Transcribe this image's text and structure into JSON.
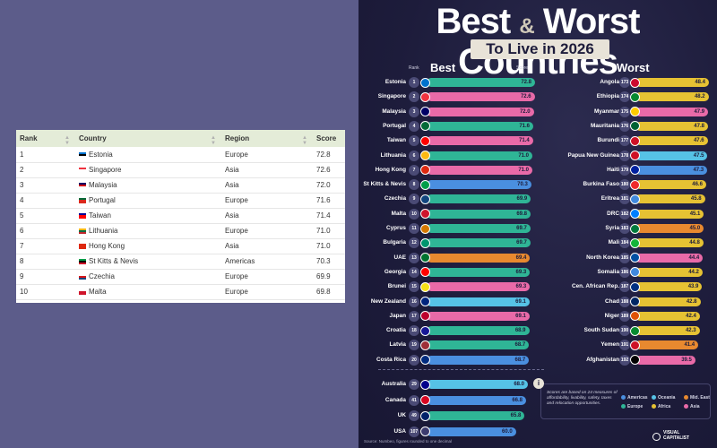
{
  "table": {
    "headers": [
      "Rank",
      "Country",
      "Region",
      "Score"
    ],
    "rows": [
      {
        "rank": "1",
        "country": "Estonia",
        "region": "Europe",
        "score": "72.8",
        "flag": [
          "#0072ce",
          "#000000",
          "#ffffff"
        ]
      },
      {
        "rank": "2",
        "country": "Singapore",
        "region": "Asia",
        "score": "72.6",
        "flag": [
          "#ef3340",
          "#ffffff",
          "#ffffff"
        ]
      },
      {
        "rank": "3",
        "country": "Malaysia",
        "region": "Asia",
        "score": "72.0",
        "flag": [
          "#010066",
          "#cc0001",
          "#ffffff"
        ]
      },
      {
        "rank": "4",
        "country": "Portugal",
        "region": "Europe",
        "score": "71.6",
        "flag": [
          "#046a38",
          "#da291c",
          "#da291c"
        ]
      },
      {
        "rank": "5",
        "country": "Taiwan",
        "region": "Asia",
        "score": "71.4",
        "flag": [
          "#000095",
          "#fe0000",
          "#fe0000"
        ]
      },
      {
        "rank": "6",
        "country": "Lithuania",
        "region": "Europe",
        "score": "71.0",
        "flag": [
          "#fdb913",
          "#006a44",
          "#c1272d"
        ]
      },
      {
        "rank": "7",
        "country": "Hong Kong",
        "region": "Asia",
        "score": "71.0",
        "flag": [
          "#de2910",
          "#de2910",
          "#de2910"
        ]
      },
      {
        "rank": "8",
        "country": "St Kitts & Nevis",
        "region": "Americas",
        "score": "70.3",
        "flag": [
          "#009e49",
          "#000000",
          "#ce1126"
        ]
      },
      {
        "rank": "9",
        "country": "Czechia",
        "region": "Europe",
        "score": "69.9",
        "flag": [
          "#ffffff",
          "#d7141a",
          "#11457e"
        ]
      },
      {
        "rank": "10",
        "country": "Malta",
        "region": "Europe",
        "score": "69.8",
        "flag": [
          "#ffffff",
          "#cf142b",
          "#cf142b"
        ]
      }
    ]
  },
  "infographic": {
    "title_main_a": "Best",
    "title_amp": "&",
    "title_main_b": "Worst Countries",
    "title_sub": "To Live in 2026",
    "best_label": "Best",
    "worst_label": "Worst",
    "rank_header": "Rank",
    "score_header": "Score",
    "colors": {
      "Americas": "#4a8fe0",
      "Europe": "#2fb596",
      "Oceania": "#56c2e6",
      "Africa": "#e6c233",
      "Mid. East": "#e8892f",
      "Asia": "#e96aa8"
    },
    "best": [
      {
        "name": "Estonia",
        "rank": "1",
        "score": 72.8,
        "region": "Europe",
        "flag": "#0072ce"
      },
      {
        "name": "Singapore",
        "rank": "2",
        "score": 72.6,
        "region": "Asia",
        "flag": "#ef3340"
      },
      {
        "name": "Malaysia",
        "rank": "3",
        "score": 72.0,
        "region": "Asia",
        "flag": "#010066"
      },
      {
        "name": "Portugal",
        "rank": "4",
        "score": 71.6,
        "region": "Europe",
        "flag": "#046a38"
      },
      {
        "name": "Taiwan",
        "rank": "5",
        "score": 71.4,
        "region": "Asia",
        "flag": "#fe0000"
      },
      {
        "name": "Lithuania",
        "rank": "6",
        "score": 71.0,
        "region": "Europe",
        "flag": "#fdb913"
      },
      {
        "name": "Hong Kong",
        "rank": "7",
        "score": 71.0,
        "region": "Asia",
        "flag": "#de2910"
      },
      {
        "name": "St Kitts & Nevis",
        "rank": "8",
        "score": 70.3,
        "region": "Americas",
        "flag": "#009e49"
      },
      {
        "name": "Czechia",
        "rank": "9",
        "score": 69.9,
        "region": "Europe",
        "flag": "#11457e"
      },
      {
        "name": "Malta",
        "rank": "10",
        "score": 69.8,
        "region": "Europe",
        "flag": "#cf142b"
      },
      {
        "name": "Cyprus",
        "rank": "11",
        "score": 69.7,
        "region": "Europe",
        "flag": "#d57800"
      },
      {
        "name": "Bulgaria",
        "rank": "12",
        "score": 69.7,
        "region": "Europe",
        "flag": "#00966e"
      },
      {
        "name": "UAE",
        "rank": "13",
        "score": 69.4,
        "region": "Mid. East",
        "flag": "#00732f"
      },
      {
        "name": "Georgia",
        "rank": "14",
        "score": 69.3,
        "region": "Europe",
        "flag": "#ff0000"
      },
      {
        "name": "Brunei",
        "rank": "15",
        "score": 69.3,
        "region": "Asia",
        "flag": "#f7e017"
      },
      {
        "name": "New Zealand",
        "rank": "16",
        "score": 69.1,
        "region": "Oceania",
        "flag": "#00247d"
      },
      {
        "name": "Japan",
        "rank": "17",
        "score": 69.1,
        "region": "Asia",
        "flag": "#bc002d"
      },
      {
        "name": "Croatia",
        "rank": "18",
        "score": 68.9,
        "region": "Europe",
        "flag": "#171796"
      },
      {
        "name": "Latvia",
        "rank": "19",
        "score": 68.7,
        "region": "Europe",
        "flag": "#9e3039"
      },
      {
        "name": "Costa Rica",
        "rank": "20",
        "score": 68.7,
        "region": "Americas",
        "flag": "#002b7f"
      }
    ],
    "others": [
      {
        "name": "Australia",
        "rank": "29",
        "score": 68.0,
        "region": "Oceania",
        "flag": "#00008b"
      },
      {
        "name": "Canada",
        "rank": "41",
        "score": 66.8,
        "region": "Americas",
        "flag": "#d80621"
      },
      {
        "name": "UK",
        "rank": "49",
        "score": 65.8,
        "region": "Europe",
        "flag": "#012169"
      },
      {
        "name": "USA",
        "rank": "107",
        "score": 60.0,
        "region": "Americas",
        "flag": "#3c3b6e"
      }
    ],
    "worst": [
      {
        "name": "Angola",
        "rank": "173",
        "score": 48.4,
        "region": "Africa",
        "flag": "#cc092f"
      },
      {
        "name": "Ethiopia",
        "rank": "174",
        "score": 48.2,
        "region": "Africa",
        "flag": "#078930"
      },
      {
        "name": "Myanmar",
        "rank": "175",
        "score": 47.9,
        "region": "Asia",
        "flag": "#fecb00"
      },
      {
        "name": "Mauritania",
        "rank": "176",
        "score": 47.8,
        "region": "Africa",
        "flag": "#006233"
      },
      {
        "name": "Burundi",
        "rank": "177",
        "score": 47.6,
        "region": "Africa",
        "flag": "#ce1126"
      },
      {
        "name": "Papua New Guinea",
        "rank": "178",
        "score": 47.5,
        "region": "Oceania",
        "flag": "#ce1126"
      },
      {
        "name": "Haiti",
        "rank": "179",
        "score": 47.3,
        "region": "Americas",
        "flag": "#00209f"
      },
      {
        "name": "Burkina Faso",
        "rank": "180",
        "score": 46.6,
        "region": "Africa",
        "flag": "#ef2b2d"
      },
      {
        "name": "Eritrea",
        "rank": "181",
        "score": 45.8,
        "region": "Africa",
        "flag": "#4189dd"
      },
      {
        "name": "DRC",
        "rank": "182",
        "score": 45.1,
        "region": "Africa",
        "flag": "#007fff"
      },
      {
        "name": "Syria",
        "rank": "183",
        "score": 45.0,
        "region": "Mid. East",
        "flag": "#007a3d"
      },
      {
        "name": "Mali",
        "rank": "184",
        "score": 44.8,
        "region": "Africa",
        "flag": "#14b53a"
      },
      {
        "name": "North Korea",
        "rank": "185",
        "score": 44.4,
        "region": "Asia",
        "flag": "#024fa2"
      },
      {
        "name": "Somalia",
        "rank": "186",
        "score": 44.2,
        "region": "Africa",
        "flag": "#4189dd"
      },
      {
        "name": "Cen. African Rep.",
        "rank": "187",
        "score": 43.9,
        "region": "Africa",
        "flag": "#003082"
      },
      {
        "name": "Chad",
        "rank": "188",
        "score": 42.8,
        "region": "Africa",
        "flag": "#002664"
      },
      {
        "name": "Niger",
        "rank": "189",
        "score": 42.4,
        "region": "Africa",
        "flag": "#e05206"
      },
      {
        "name": "South Sudan",
        "rank": "190",
        "score": 42.3,
        "region": "Africa",
        "flag": "#078930"
      },
      {
        "name": "Yemen",
        "rank": "191",
        "score": 41.4,
        "region": "Mid. East",
        "flag": "#ce1126"
      },
      {
        "name": "Afghanistan",
        "rank": "192",
        "score": 39.5,
        "region": "Asia",
        "flag": "#000000"
      }
    ],
    "note": "Scores are based on 24 measures of affordability, livability, safety, taxes and relocation opportunities.",
    "legend": [
      "Americas",
      "Oceania",
      "Mid. East",
      "Europe",
      "Africa",
      "Asia"
    ],
    "source": "Source: Numbeo, figures rounded to one decimal",
    "brand_line1": "VISUAL",
    "brand_line2": "CAPITALIST"
  }
}
